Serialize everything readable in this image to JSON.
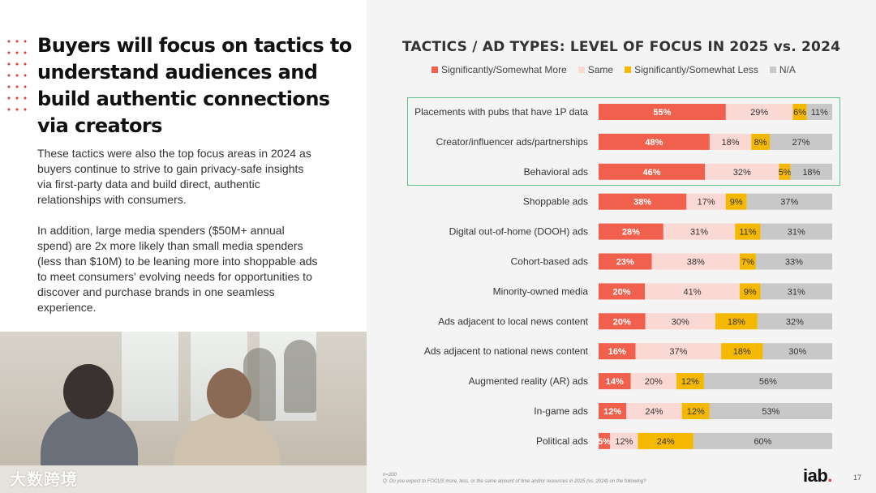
{
  "headline": "Buyers will focus on tactics to understand audiences and build authentic connections via creators",
  "paragraph1": "These tactics were also the top focus areas in 2024 as buyers continue to strive to gain privacy-safe insights via first-party data and build direct, authentic relationships with consumers.",
  "paragraph2": "In addition, large media spenders ($50M+ annual spend) are 2x more likely than small media spenders (less than $10M) to be leaning more into shoppable ads to meet consumers' evolving needs for opportunities to discover and purchase brands in one seamless experience.",
  "watermark": "大数跨境",
  "footnote": {
    "sample": "n=200",
    "question": "Q: Do you expect to FOCUS more, less, or the same amount of time and/or resources in 2025 (vs. 2024) on the following?"
  },
  "logo": {
    "text": "iab",
    "dot": "."
  },
  "page_number": "17",
  "colors": {
    "more": "#f0604d",
    "same": "#fad8d4",
    "less": "#f5b800",
    "na": "#c8c8c8",
    "accent_red": "#e24040",
    "highlight": "#5fbf8f"
  },
  "chart_data": {
    "type": "bar",
    "orientation": "horizontal",
    "stacked": true,
    "title": "TACTICS / AD TYPES: LEVEL OF FOCUS IN 2025 vs. 2024",
    "legend": [
      "Significantly/Somewhat More",
      "Same",
      "Significantly/Somewhat Less",
      "N/A"
    ],
    "categories": [
      "Placements with pubs that have 1P data",
      "Creator/influencer ads/partnerships",
      "Behavioral ads",
      "Shoppable ads",
      "Digital out-of-home (DOOH) ads",
      "Cohort-based ads",
      "Minority-owned media",
      "Ads adjacent to local news content",
      "Ads adjacent to national news content",
      "Augmented reality (AR) ads",
      "In-game ads",
      "Political ads"
    ],
    "series": [
      {
        "name": "Significantly/Somewhat More",
        "values": [
          55,
          48,
          46,
          38,
          28,
          23,
          20,
          20,
          16,
          14,
          12,
          5
        ]
      },
      {
        "name": "Same",
        "values": [
          29,
          18,
          32,
          17,
          31,
          38,
          41,
          30,
          37,
          20,
          24,
          12
        ]
      },
      {
        "name": "Significantly/Somewhat Less",
        "values": [
          6,
          8,
          5,
          9,
          11,
          7,
          9,
          18,
          18,
          12,
          12,
          24
        ]
      },
      {
        "name": "N/A",
        "values": [
          11,
          27,
          18,
          37,
          31,
          33,
          31,
          32,
          30,
          56,
          53,
          60
        ]
      }
    ],
    "value_suffix": "%",
    "highlighted_categories": [
      "Placements with pubs that have 1P data",
      "Creator/influencer ads/partnerships",
      "Behavioral ads"
    ]
  }
}
